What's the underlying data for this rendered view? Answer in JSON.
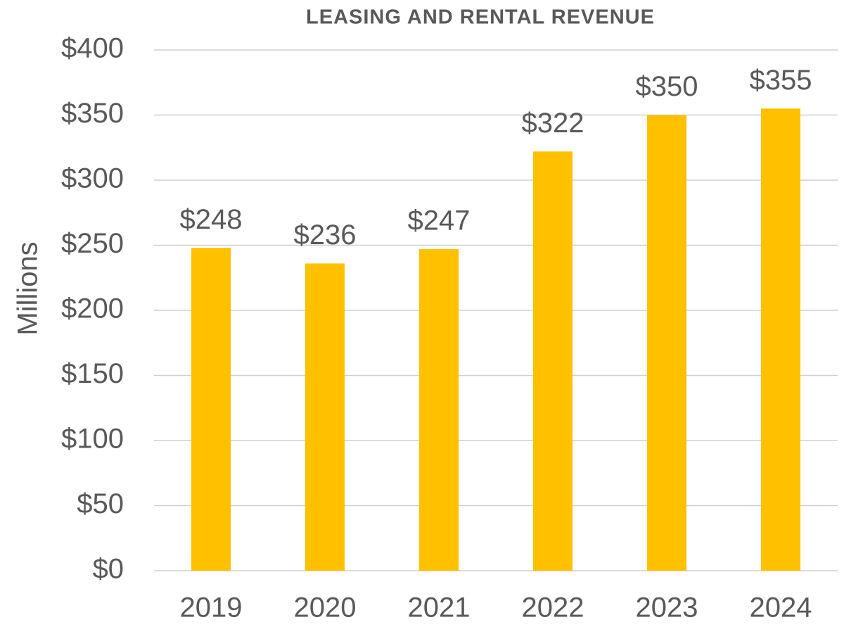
{
  "chart_data": {
    "type": "bar",
    "title": "LEASING AND RENTAL REVENUE",
    "y_label": "Millions",
    "categories": [
      "2019",
      "2020",
      "2021",
      "2022",
      "2023",
      "2024"
    ],
    "values": [
      248,
      236,
      247,
      322,
      350,
      355
    ],
    "value_labels": [
      "$248",
      "$236",
      "$247",
      "$322",
      "$350",
      "$355"
    ],
    "color": "#FFC000",
    "ylim": [
      0,
      400
    ],
    "yticks": [
      {
        "value": 0,
        "label": "$0"
      },
      {
        "value": 50,
        "label": "$50"
      },
      {
        "value": 100,
        "label": "$100"
      },
      {
        "value": 150,
        "label": "$150"
      },
      {
        "value": 200,
        "label": "$200"
      },
      {
        "value": 250,
        "label": "$250"
      },
      {
        "value": 300,
        "label": "$300"
      },
      {
        "value": 350,
        "label": "$350"
      },
      {
        "value": 400,
        "label": "$400"
      }
    ],
    "grid": true
  }
}
